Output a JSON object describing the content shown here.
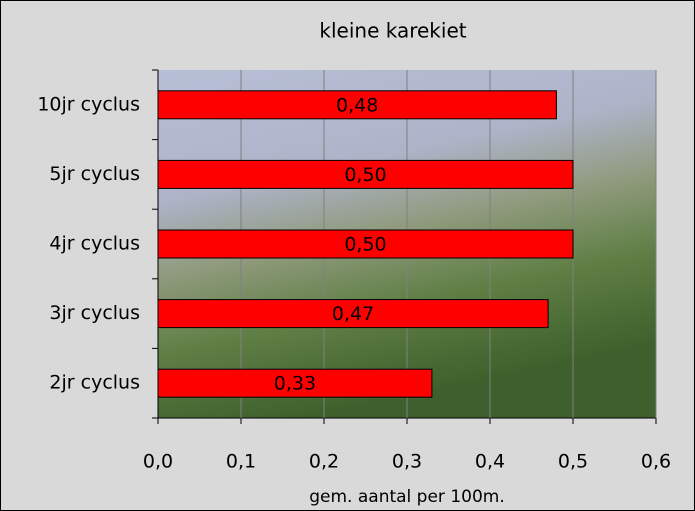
{
  "chart_data": {
    "type": "hbar",
    "title": "kleine karekiet",
    "categories": [
      "10jr cyclus",
      "5jr cyclus",
      "4jr cyclus",
      "3jr cyclus",
      "2jr cyclus"
    ],
    "values": [
      0.48,
      0.5,
      0.5,
      0.47,
      0.33
    ],
    "value_labels": [
      "0,48",
      "0,50",
      "0,50",
      "0,47",
      "0,33"
    ],
    "color": "#ff0000",
    "xlim": [
      0,
      0.6
    ],
    "xticks": [
      {
        "value": 0,
        "label": "0,0"
      },
      {
        "value": 0.1,
        "label": "0,1"
      },
      {
        "value": 0.2,
        "label": "0,2"
      },
      {
        "value": 0.3,
        "label": "0,3"
      },
      {
        "value": 0.4,
        "label": "0,4"
      },
      {
        "value": 0.5,
        "label": "0,5"
      },
      {
        "value": 0.6,
        "label": "0,6"
      }
    ],
    "xlabel": "gem. aantal per 100m.",
    "grid": true
  }
}
